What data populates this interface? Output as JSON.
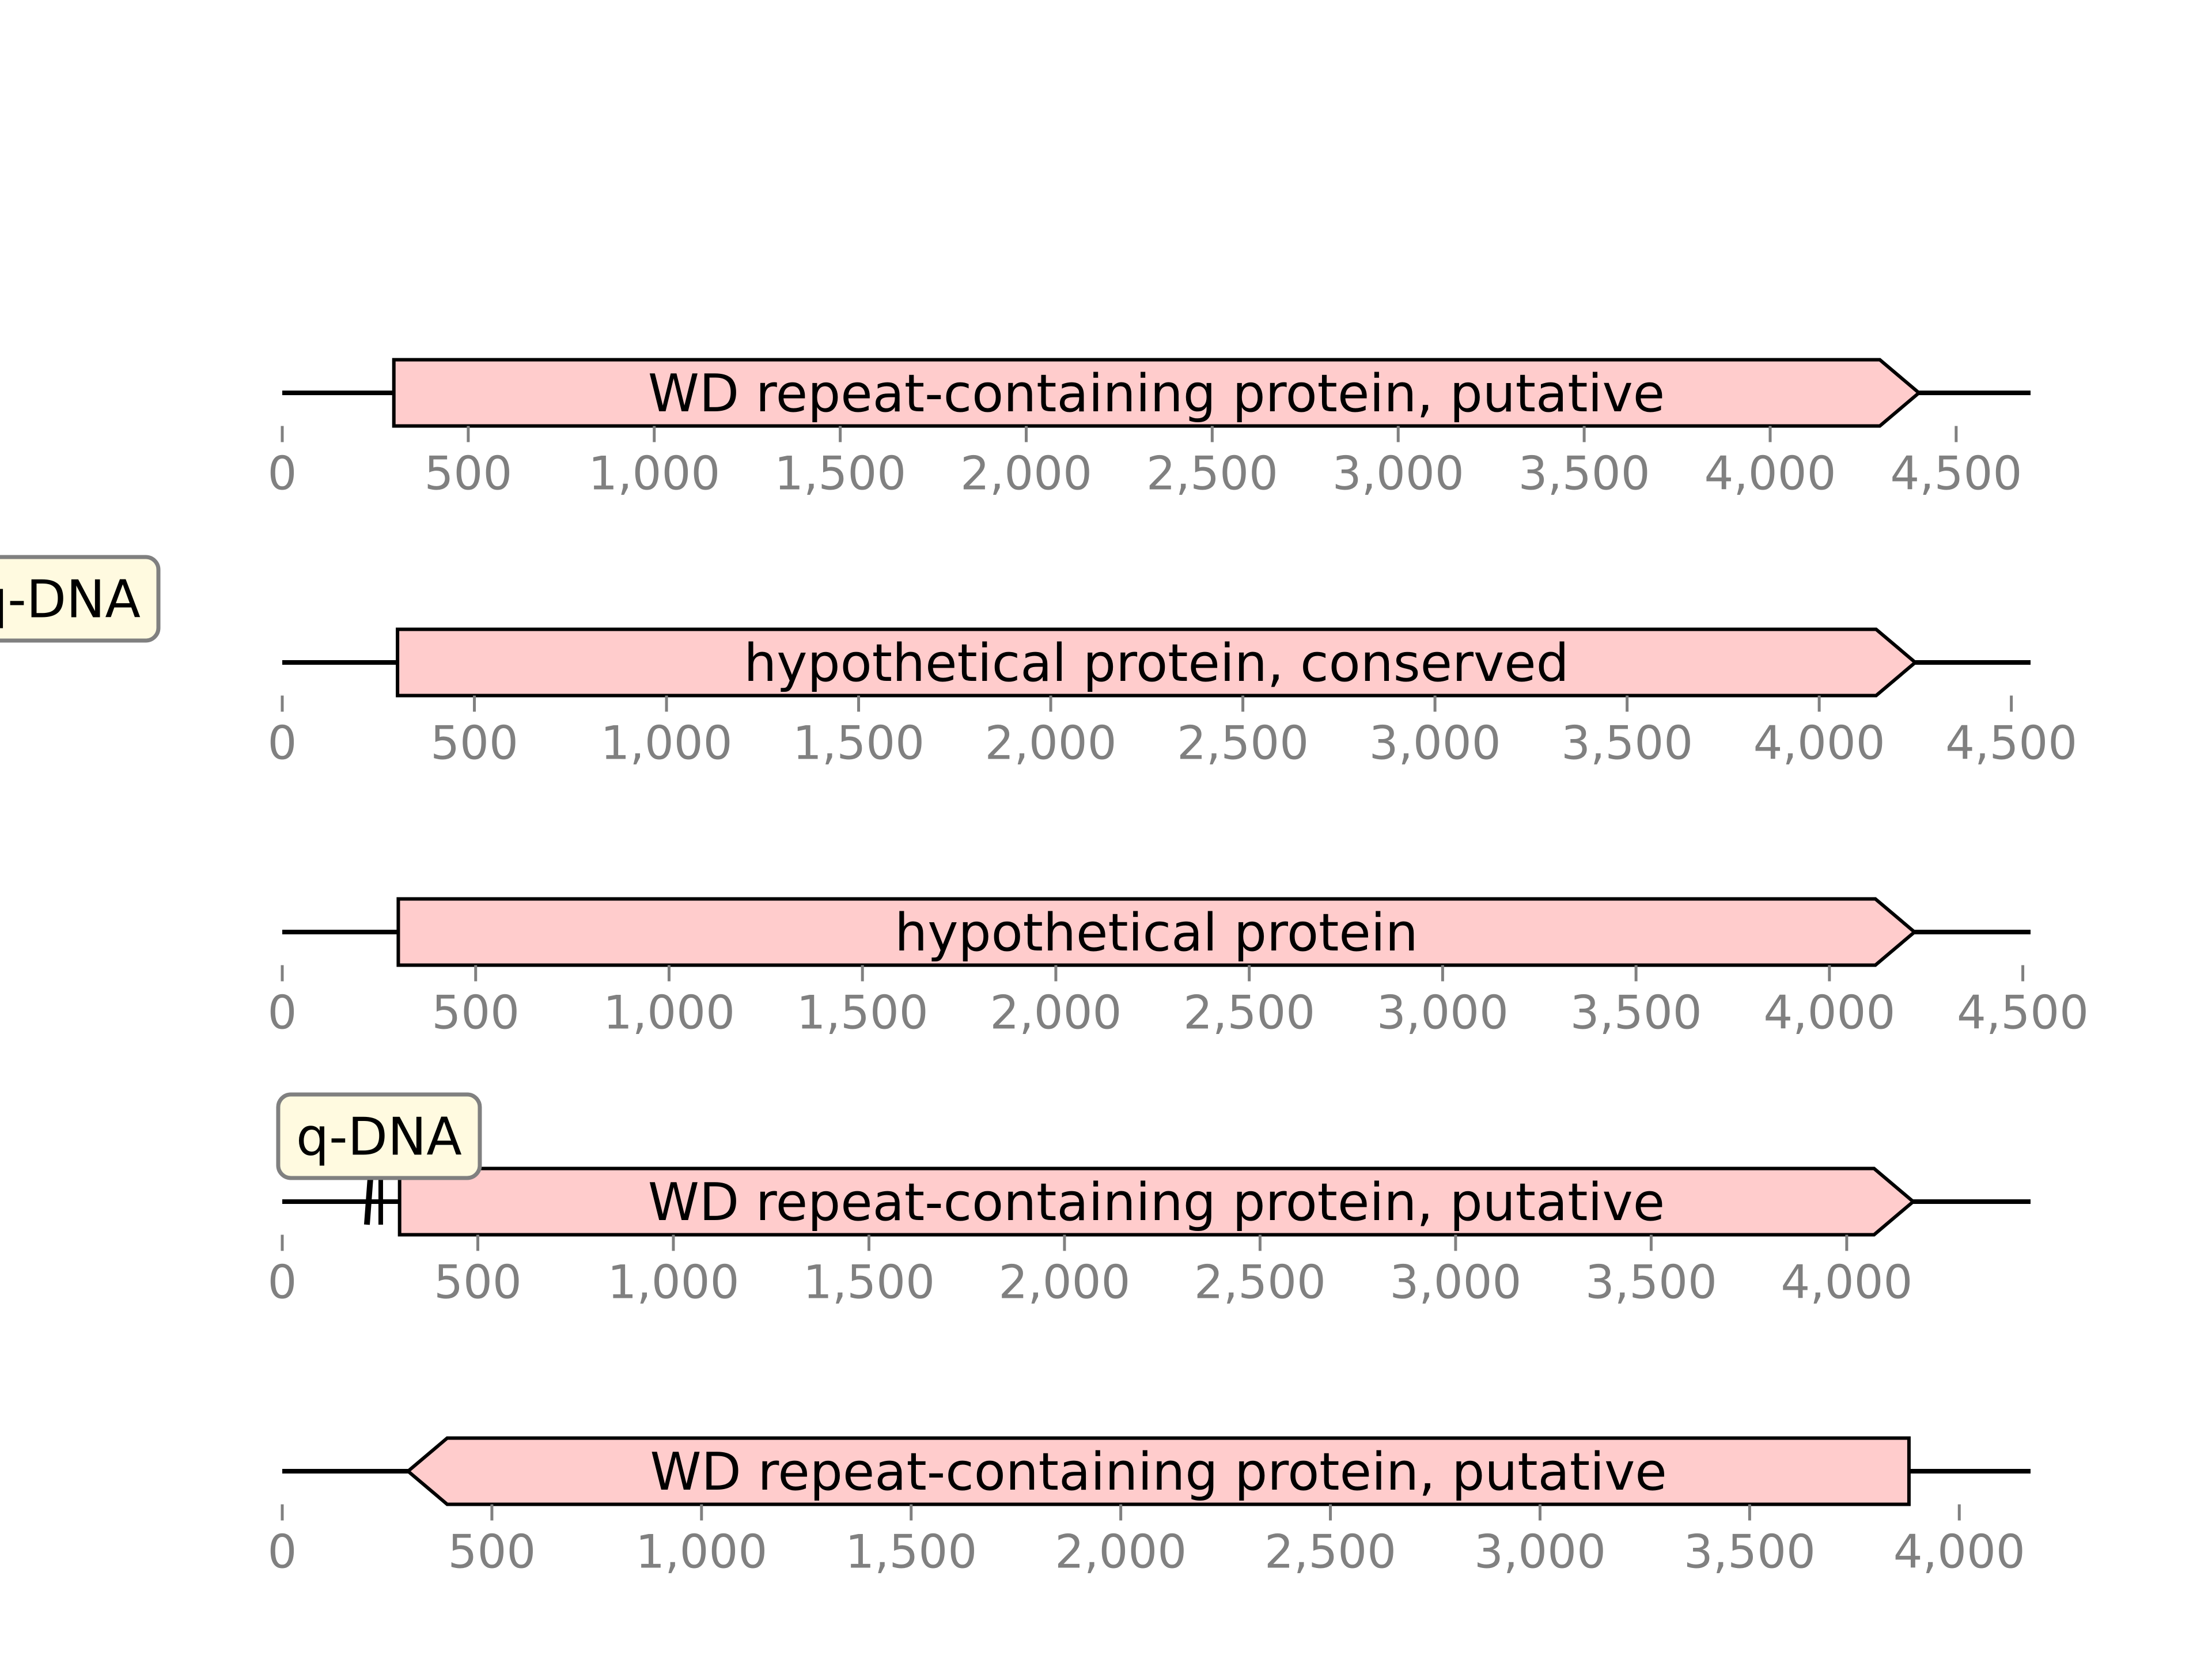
{
  "colors": {
    "feature_fill": "#ffcccc",
    "feature_stroke": "#000000",
    "backbone": "#000000",
    "tick": "#808080",
    "tag_fill": "#fffae0",
    "tag_stroke": "#808080"
  },
  "chart_data": {
    "type": "diagram",
    "tracks": [
      {
        "length": 4700,
        "ticks": [
          "0",
          "500",
          "1,000",
          "1,500",
          "2,000",
          "2,500",
          "3,000",
          "3,500",
          "4,000",
          "4,500"
        ],
        "features": [
          {
            "label": "WD repeat-containing protein, putative",
            "start": 300,
            "end": 4400,
            "strand": 1
          }
        ],
        "tags": [
          {
            "label": "q-DNA",
            "position": 0
          }
        ]
      },
      {
        "length": 4550,
        "ticks": [
          "0",
          "500",
          "1,000",
          "1,500",
          "2,000",
          "2,500",
          "3,000",
          "3,500",
          "4,000",
          "4,500"
        ],
        "features": [
          {
            "label": "hypothetical protein, conserved",
            "start": 300,
            "end": 4250,
            "strand": 1
          }
        ],
        "tags": []
      },
      {
        "length": 4520,
        "ticks": [
          "0",
          "500",
          "1,000",
          "1,500",
          "2,000",
          "2,500",
          "3,000",
          "3,500",
          "4,000",
          "4,500"
        ],
        "features": [
          {
            "label": "hypothetical protein",
            "start": 300,
            "end": 4220,
            "strand": 1
          }
        ],
        "tags": []
      },
      {
        "length": 4470,
        "ticks": [
          "0",
          "500",
          "1,000",
          "1,500",
          "2,000",
          "2,500",
          "3,000",
          "3,500",
          "4,000"
        ],
        "features": [
          {
            "label": "WD repeat-containing protein, putative",
            "start": 300,
            "end": 4170,
            "strand": 1
          }
        ],
        "tags": [
          {
            "label": "q-DNA",
            "position": 240
          }
        ]
      },
      {
        "length": 4170,
        "ticks": [
          "0",
          "500",
          "1,000",
          "1,500",
          "2,000",
          "2,500",
          "3,000",
          "3,500",
          "4,000"
        ],
        "features": [
          {
            "label": "WD repeat-containing protein, putative",
            "start": 300,
            "end": 3880,
            "strand": -1
          }
        ],
        "tags": []
      }
    ]
  }
}
